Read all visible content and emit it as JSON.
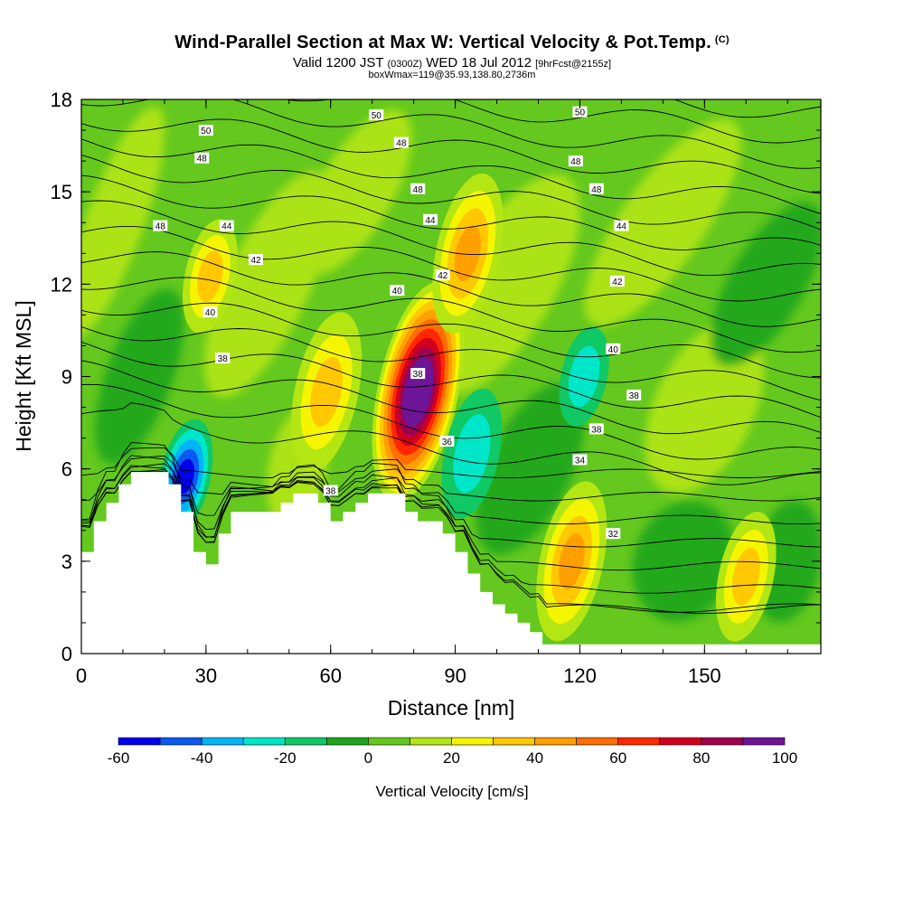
{
  "chart_data": {
    "type": "heatmap",
    "title": "Wind-Parallel Section at Max W: Vertical Velocity & Pot.Temp.",
    "title_mark": "(C)",
    "subtitle_parts": {
      "a": "Valid 1200 JST",
      "b": "(0300Z)",
      "c": "WED 18 Jul 2012",
      "d": "[9hrFcst@2155z]"
    },
    "subtitle2": "boxWmax=119@35.93,138.80,2736m",
    "xlabel": "Distance [nm]",
    "ylabel": "Height [Kft MSL]",
    "xlim": [
      0,
      178
    ],
    "ylim": [
      0,
      18
    ],
    "x_ticks": [
      "0",
      "30",
      "60",
      "90",
      "120",
      "150"
    ],
    "y_ticks": [
      "0",
      "3",
      "6",
      "9",
      "12",
      "15",
      "18"
    ],
    "colorbar": {
      "label": "Vertical Velocity [cm/s]",
      "range": [
        -60,
        100
      ],
      "step": 10,
      "tick_labels": [
        "-60",
        "-40",
        "-20",
        "0",
        "20",
        "40",
        "60",
        "80",
        "100"
      ],
      "colors": [
        "#0000ee",
        "#0a5af0",
        "#00b4f5",
        "#00e6c8",
        "#10c864",
        "#1ea51e",
        "#64c81e",
        "#b4e614",
        "#f5f500",
        "#ffc800",
        "#ffa000",
        "#ff6e00",
        "#ff2800",
        "#d2001e",
        "#a00050",
        "#6e1496"
      ]
    },
    "updraft_cores": [
      {
        "x": 81,
        "ybot": 5.5,
        "ytop": 11.5,
        "w": 119
      },
      {
        "x": 59,
        "ybot": 6.5,
        "ytop": 10.5,
        "w": 30
      },
      {
        "x": 93,
        "ybot": 11,
        "ytop": 15,
        "w": 40
      },
      {
        "x": 31,
        "ybot": 11,
        "ytop": 13.5,
        "w": 30
      },
      {
        "x": 118,
        "ybot": 1,
        "ytop": 5,
        "w": 40
      },
      {
        "x": 160,
        "ybot": 1,
        "ytop": 4,
        "w": 30
      }
    ],
    "downdraft_cores": [
      {
        "x": 25,
        "ybot": 4.5,
        "ytop": 7,
        "w": -50
      },
      {
        "x": 94,
        "ybot": 5,
        "ytop": 8,
        "w": -25
      },
      {
        "x": 121,
        "ybot": 8,
        "ytop": 10,
        "w": -25
      }
    ],
    "terrain": {
      "x": [
        0,
        3,
        3,
        6,
        6,
        9,
        9,
        12,
        12,
        21,
        21,
        24,
        24,
        27,
        27,
        30,
        30,
        33,
        33,
        36,
        36,
        39,
        39,
        48,
        48,
        51,
        51,
        54,
        54,
        57,
        57,
        60,
        60,
        63,
        63,
        66,
        66,
        69,
        69,
        72,
        72,
        75,
        75,
        78,
        78,
        81,
        81,
        84,
        84,
        87,
        87,
        90,
        90,
        93,
        93,
        96,
        96,
        99,
        99,
        102,
        102,
        105,
        105,
        108,
        108,
        111,
        111,
        114,
        114,
        117,
        117,
        178
      ],
      "y": [
        3.3,
        3.3,
        4.3,
        4.3,
        4.9,
        4.9,
        5.5,
        5.5,
        5.9,
        5.9,
        5.5,
        5.5,
        4.6,
        4.6,
        3.3,
        3.3,
        2.9,
        2.9,
        3.9,
        3.9,
        4.6,
        4.6,
        4.6,
        4.6,
        4.9,
        4.9,
        5.2,
        5.2,
        5.2,
        5.2,
        4.9,
        4.9,
        4.3,
        4.3,
        4.6,
        4.6,
        4.9,
        4.9,
        5.2,
        5.2,
        5.2,
        5.2,
        5.2,
        5.2,
        4.6,
        4.6,
        4.3,
        4.3,
        4.3,
        4.3,
        3.9,
        3.9,
        3.3,
        3.3,
        2.6,
        2.6,
        2.0,
        2.0,
        1.6,
        1.6,
        1.3,
        1.3,
        1.0,
        1.0,
        0.7,
        0.7,
        0.3,
        0.3,
        0.3,
        0.3,
        0.3,
        0.3
      ]
    },
    "contour_labels": [
      {
        "text": "50",
        "x": 30,
        "y": 17.0
      },
      {
        "text": "50",
        "x": 71,
        "y": 17.5
      },
      {
        "text": "50",
        "x": 120,
        "y": 17.6
      },
      {
        "text": "48",
        "x": 29,
        "y": 16.1
      },
      {
        "text": "48",
        "x": 77,
        "y": 16.6
      },
      {
        "text": "48",
        "x": 81,
        "y": 15.1
      },
      {
        "text": "48",
        "x": 19,
        "y": 13.9
      },
      {
        "text": "48",
        "x": 119,
        "y": 16.0
      },
      {
        "text": "48",
        "x": 124,
        "y": 15.1
      },
      {
        "text": "44",
        "x": 35,
        "y": 13.9
      },
      {
        "text": "44",
        "x": 84,
        "y": 14.1
      },
      {
        "text": "44",
        "x": 130,
        "y": 13.9
      },
      {
        "text": "42",
        "x": 42,
        "y": 12.8
      },
      {
        "text": "42",
        "x": 87,
        "y": 12.3
      },
      {
        "text": "42",
        "x": 129,
        "y": 12.1
      },
      {
        "text": "40",
        "x": 76,
        "y": 11.8
      },
      {
        "text": "40",
        "x": 31,
        "y": 11.1
      },
      {
        "text": "40",
        "x": 128,
        "y": 9.9
      },
      {
        "text": "38",
        "x": 34,
        "y": 9.6
      },
      {
        "text": "38",
        "x": 81,
        "y": 9.1
      },
      {
        "text": "38",
        "x": 133,
        "y": 8.4
      },
      {
        "text": "38",
        "x": 60,
        "y": 5.3
      },
      {
        "text": "38",
        "x": 124,
        "y": 7.3
      },
      {
        "text": "36",
        "x": 88,
        "y": 6.9
      },
      {
        "text": "34",
        "x": 120,
        "y": 6.3
      },
      {
        "text": "32",
        "x": 128,
        "y": 3.9
      }
    ]
  }
}
